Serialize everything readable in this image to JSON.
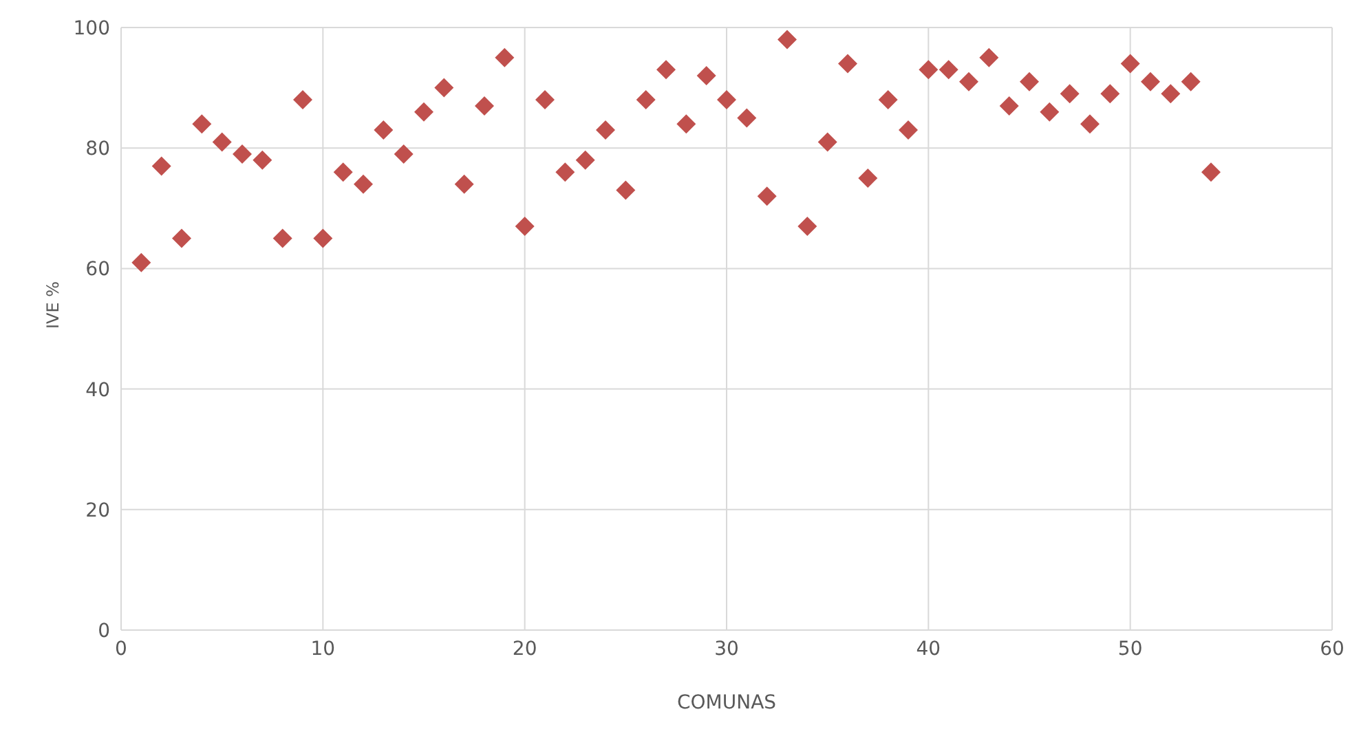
{
  "chart_data": {
    "type": "scatter",
    "xlabel": "COMUNAS",
    "ylabel": "IVE %",
    "x": [
      1,
      2,
      3,
      4,
      5,
      6,
      7,
      8,
      9,
      10,
      11,
      12,
      13,
      14,
      15,
      16,
      17,
      18,
      19,
      20,
      21,
      22,
      23,
      24,
      25,
      26,
      27,
      28,
      29,
      30,
      31,
      32,
      33,
      34,
      35,
      36,
      37,
      38,
      39,
      40,
      41,
      42,
      43,
      44,
      45,
      46,
      47,
      48,
      49,
      50,
      51,
      52,
      53,
      54
    ],
    "series": [
      {
        "color": "#c0504d",
        "values": [
          61,
          77,
          65,
          84,
          81,
          79,
          78,
          65,
          88,
          65,
          76,
          74,
          83,
          79,
          86,
          90,
          74,
          87,
          95,
          67,
          88,
          76,
          78,
          83,
          73,
          88,
          93,
          84,
          92,
          88,
          85,
          72,
          98,
          67,
          81,
          94,
          75,
          88,
          83,
          93,
          93,
          91,
          95,
          87,
          91,
          86,
          89,
          84,
          89,
          94,
          91,
          89,
          91,
          76
        ]
      }
    ],
    "xlim": [
      0,
      60
    ],
    "xticks": [
      0,
      10,
      20,
      30,
      40,
      50,
      60
    ],
    "ylim": [
      0,
      100
    ],
    "yticks": [
      0,
      20,
      40,
      60,
      80,
      100
    ],
    "grid": true,
    "marker": "diamond"
  }
}
